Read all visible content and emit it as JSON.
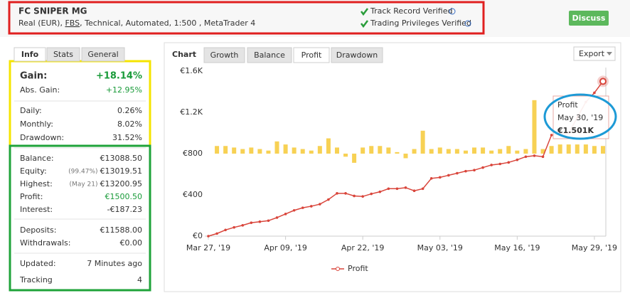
{
  "header": {
    "title": "FC SNIPER MG",
    "subtitle": [
      "Real (EUR), ",
      "FBS",
      ", Technical, Automated, 1:500 , MetaTrader 4"
    ],
    "verified": [
      "Track Record Verified",
      "Trading Privileges Verified"
    ],
    "button": "Discuss"
  },
  "info_tabs": [
    "Info",
    "Stats",
    "General"
  ],
  "stats": {
    "gain": {
      "label": "Gain:",
      "value": "+18.14%"
    },
    "groups": [
      [
        {
          "label": "Abs. Gain:",
          "value": "+12.95%",
          "green": true
        }
      ],
      [
        {
          "label": "Daily:",
          "value": "0.26%"
        },
        {
          "label": "Monthly:",
          "value": "8.02%"
        },
        {
          "label": "Drawdown:",
          "value": "31.52%"
        }
      ],
      [
        {
          "label": "Balance:",
          "value": "€13088.50"
        },
        {
          "label": "Equity:",
          "note": "(99.47%)",
          "value": "€13019.51"
        },
        {
          "label": "Highest:",
          "note": "(May 21)",
          "value": "€13200.95"
        },
        {
          "label": "Profit:",
          "value": "€1500.50",
          "green": true
        },
        {
          "label": "Interest:",
          "value": "-€187.23"
        }
      ],
      [
        {
          "label": "Deposits:",
          "value": "€11588.00"
        },
        {
          "label": "Withdrawals:",
          "value": "€0.00"
        }
      ],
      [
        {
          "label": "Updated:",
          "value": "7 Minutes ago"
        },
        {
          "label": "Tracking",
          "value": "4"
        }
      ]
    ]
  },
  "chart_panel": {
    "label": "Chart",
    "tabs": [
      "Growth",
      "Balance",
      "Profit",
      "Drawdown"
    ],
    "active_tab": 2,
    "export": "Export"
  },
  "chart_data": {
    "type": "line",
    "categories": [
      "Mar 27, '19",
      null,
      null,
      null,
      null,
      null,
      null,
      null,
      null,
      "Apr 09, '19",
      null,
      null,
      null,
      null,
      null,
      null,
      null,
      null,
      "Apr 22, '19",
      null,
      null,
      null,
      null,
      null,
      null,
      null,
      null,
      "May 03, '19",
      null,
      null,
      null,
      null,
      null,
      null,
      null,
      null,
      "May 16, '19",
      null,
      null,
      null,
      null,
      null,
      null,
      null,
      null,
      "May 29, '19",
      null
    ],
    "series": [
      {
        "name": "Profit",
        "color": "#d9453b",
        "values": [
          0,
          25,
          60,
          85,
          105,
          130,
          140,
          150,
          180,
          215,
          250,
          275,
          290,
          310,
          355,
          415,
          415,
          390,
          385,
          410,
          430,
          460,
          460,
          470,
          440,
          460,
          560,
          570,
          590,
          610,
          630,
          640,
          665,
          690,
          700,
          715,
          740,
          770,
          780,
          770,
          980,
          990,
          1000,
          1150,
          1300,
          1390,
          1501
        ]
      }
    ],
    "bars": {
      "color": "#f7d154",
      "axis": "y2",
      "values": [
        0,
        0.5,
        0.5,
        0.4,
        0.3,
        0.4,
        0.3,
        0.2,
        0.8,
        0.6,
        0.4,
        0.3,
        0.2,
        0.5,
        1.0,
        0.4,
        -0.2,
        -0.6,
        0.4,
        0.5,
        0.5,
        0.4,
        0.1,
        -0.3,
        0.3,
        1.5,
        0.3,
        0.4,
        0.3,
        0.3,
        0.2,
        0.4,
        0.4,
        0.2,
        0.3,
        0.5,
        0.2,
        0.3,
        3.5,
        0.3,
        0.5,
        0.6,
        0.6,
        0.6,
        0.6,
        0.5,
        0.5
      ]
    },
    "ylim": [
      0,
      1600
    ],
    "y2lim": [
      -5.4,
      5.4
    ],
    "yticks": [
      {
        "value": 0,
        "label": "€0"
      },
      {
        "value": 400,
        "label": "€400"
      },
      {
        "value": 800,
        "label": "€800"
      },
      {
        "value": 1200,
        "label": "€1.2K"
      },
      {
        "value": 1600,
        "label": "€1.6K"
      }
    ],
    "grid": false,
    "tooltip": {
      "title": "Profit",
      "date": "May 30, '19",
      "value": 1501,
      "value_label": "€1.501K"
    }
  }
}
